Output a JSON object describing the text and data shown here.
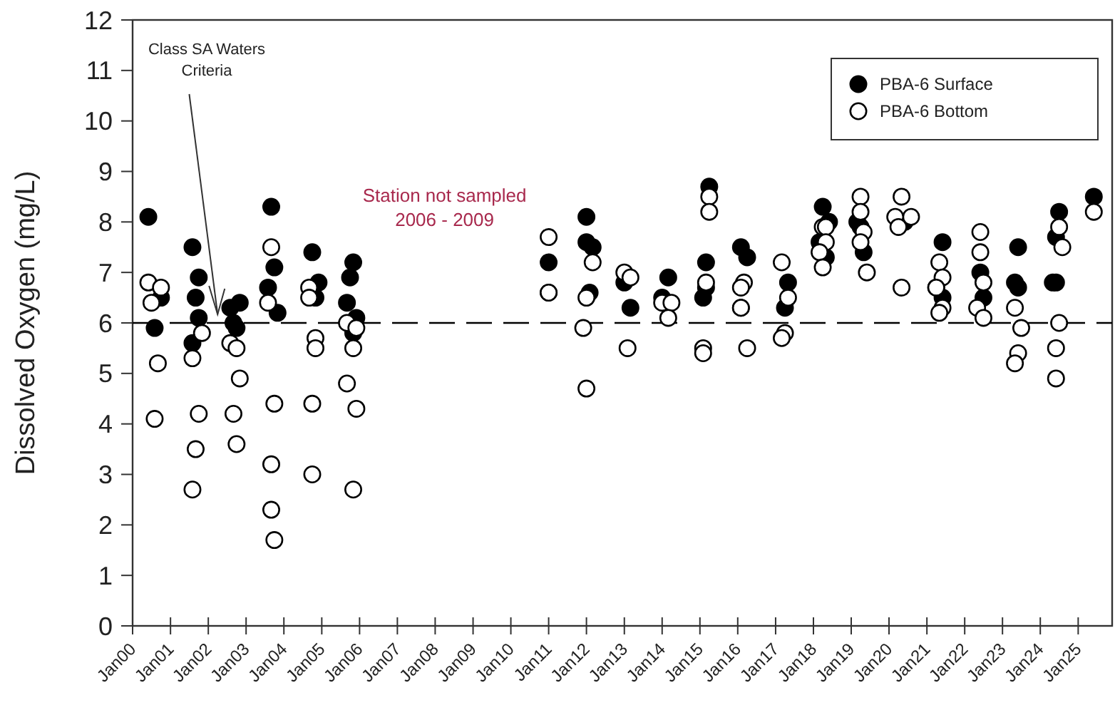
{
  "chart_data": {
    "type": "scatter",
    "ylabel": "Dissolved Oxygen (mg/L)",
    "xlim": [
      "2000-01-01",
      "2025-11-25"
    ],
    "ylim": [
      0,
      12
    ],
    "xticks": [
      {
        "value": "2000-01",
        "label": "Jan00"
      },
      {
        "value": "2001-01",
        "label": "Jan01"
      },
      {
        "value": "2002-01",
        "label": "Jan02"
      },
      {
        "value": "2003-01",
        "label": "Jan03"
      },
      {
        "value": "2004-01",
        "label": "Jan04"
      },
      {
        "value": "2005-01",
        "label": "Jan05"
      },
      {
        "value": "2006-01",
        "label": "Jan06"
      },
      {
        "value": "2007-01",
        "label": "Jan07"
      },
      {
        "value": "2008-01",
        "label": "Jan08"
      },
      {
        "value": "2009-01",
        "label": "Jan09"
      },
      {
        "value": "2010-01",
        "label": "Jan10"
      },
      {
        "value": "2011-01",
        "label": "Jan11"
      },
      {
        "value": "2012-01",
        "label": "Jan12"
      },
      {
        "value": "2013-01",
        "label": "Jan13"
      },
      {
        "value": "2014-01",
        "label": "Jan14"
      },
      {
        "value": "2015-01",
        "label": "Jan15"
      },
      {
        "value": "2016-01",
        "label": "Jan16"
      },
      {
        "value": "2017-01",
        "label": "Jan17"
      },
      {
        "value": "2018-01",
        "label": "Jan18"
      },
      {
        "value": "2019-01",
        "label": "Jan19"
      },
      {
        "value": "2020-01",
        "label": "Jan20"
      },
      {
        "value": "2021-01",
        "label": "Jan21"
      },
      {
        "value": "2022-01",
        "label": "Jan22"
      },
      {
        "value": "2023-01",
        "label": "Jan23"
      },
      {
        "value": "2024-01",
        "label": "Jan24"
      },
      {
        "value": "2025-01",
        "label": "Jan25"
      }
    ],
    "yticks": [
      0,
      1,
      2,
      3,
      4,
      5,
      6,
      7,
      8,
      9,
      10,
      11,
      12
    ],
    "grid": false,
    "legend": "top right",
    "marker": "circle",
    "ref_lines": [
      {
        "axis": "y",
        "value": 6,
        "label": "Class SA Waters Criteria",
        "line_style": "dashed",
        "color": "#000000"
      }
    ],
    "annotations": [
      "Station not sampled\n2006 - 2009"
    ],
    "series": [
      {
        "name": "PBA-6 Surface",
        "color": "#000000",
        "x": [
          "2000-06",
          "2000-08",
          "2000-10",
          "2001-08",
          "2001-10",
          "2001-09",
          "2001-10",
          "2001-08",
          "2002-08",
          "2002-11",
          "2002-09",
          "2002-10",
          "2003-09",
          "2003-10",
          "2003-08",
          "2003-11",
          "2004-10",
          "2004-12",
          "2004-11",
          "2005-11",
          "2005-10",
          "2005-09",
          "2005-12",
          "2005-11",
          "2011-01",
          "2011-01",
          "2012-01",
          "2012-01",
          "2012-03",
          "2012-02",
          "2013-01",
          "2013-03",
          "2014-03",
          "2014-01",
          "2015-04",
          "2015-03",
          "2015-03",
          "2015-02",
          "2016-02",
          "2016-04",
          "2016-02",
          "2017-05",
          "2017-04",
          "2018-04",
          "2018-06",
          "2018-03",
          "2018-05",
          "2019-03",
          "2019-04",
          "2019-05",
          "2020-06",
          "2021-06",
          "2021-04",
          "2021-06",
          "2022-06",
          "2022-07",
          "2023-06",
          "2023-05",
          "2023-06",
          "2024-07",
          "2024-06",
          "2024-06",
          "2024-05",
          "2025-06"
        ],
        "values": [
          8.1,
          5.9,
          6.5,
          7.5,
          6.9,
          6.5,
          6.1,
          5.6,
          6.3,
          6.4,
          6.0,
          5.9,
          8.3,
          7.1,
          6.7,
          6.2,
          7.4,
          6.8,
          6.5,
          7.2,
          6.9,
          6.4,
          6.1,
          5.8,
          7.2,
          6.6,
          8.1,
          7.6,
          7.5,
          6.6,
          6.8,
          6.3,
          6.9,
          6.5,
          8.7,
          7.2,
          6.7,
          6.5,
          7.5,
          7.3,
          6.3,
          6.8,
          6.3,
          8.3,
          8.0,
          7.6,
          7.3,
          8.0,
          7.9,
          7.4,
          8.0,
          7.6,
          6.7,
          6.5,
          7.0,
          6.5,
          7.5,
          6.8,
          6.7,
          8.2,
          7.7,
          6.8,
          6.8,
          8.5
        ]
      },
      {
        "name": "PBA-6 Bottom",
        "color": "#ffffff",
        "x": [
          "2000-06",
          "2000-07",
          "2000-10",
          "2000-09",
          "2000-08",
          "2001-08",
          "2001-11",
          "2001-10",
          "2001-09",
          "2001-08",
          "2002-08",
          "2002-10",
          "2002-11",
          "2002-09",
          "2002-10",
          "2003-09",
          "2003-08",
          "2003-10",
          "2003-09",
          "2003-09",
          "2003-10",
          "2004-09",
          "2004-09",
          "2004-11",
          "2004-11",
          "2004-10",
          "2004-10",
          "2005-09",
          "2005-12",
          "2005-11",
          "2005-09",
          "2005-12",
          "2005-11",
          "2011-01",
          "2011-01",
          "2012-03",
          "2012-01",
          "2011-12",
          "2012-01",
          "2013-01",
          "2013-03",
          "2013-02",
          "2014-01",
          "2014-04",
          "2014-03",
          "2015-04",
          "2015-04",
          "2015-03",
          "2015-02",
          "2015-02",
          "2016-03",
          "2016-02",
          "2016-02",
          "2016-04",
          "2017-03",
          "2017-05",
          "2017-04",
          "2017-03",
          "2018-04",
          "2018-05",
          "2018-05",
          "2018-03",
          "2018-04",
          "2019-04",
          "2019-04",
          "2019-05",
          "2019-04",
          "2019-06",
          "2020-05",
          "2020-08",
          "2020-03",
          "2020-04",
          "2020-05",
          "2021-05",
          "2021-06",
          "2021-04",
          "2021-06",
          "2021-05",
          "2022-06",
          "2022-06",
          "2022-07",
          "2022-05",
          "2022-07",
          "2023-05",
          "2023-07",
          "2023-06",
          "2023-05",
          "2024-07",
          "2024-08",
          "2024-07",
          "2024-06",
          "2024-06",
          "2025-06"
        ],
        "values": [
          6.8,
          6.4,
          6.7,
          5.2,
          4.1,
          5.3,
          5.8,
          4.2,
          3.5,
          2.7,
          5.6,
          5.5,
          4.9,
          4.2,
          3.6,
          7.5,
          6.4,
          4.4,
          3.2,
          2.3,
          1.7,
          6.7,
          6.5,
          5.7,
          5.5,
          4.4,
          3.0,
          6.0,
          5.9,
          5.5,
          4.8,
          4.3,
          2.7,
          7.7,
          6.6,
          7.2,
          6.5,
          5.9,
          4.7,
          7.0,
          6.9,
          5.5,
          6.4,
          6.4,
          6.1,
          8.5,
          8.2,
          6.8,
          5.5,
          5.4,
          6.8,
          6.7,
          6.3,
          5.5,
          7.2,
          6.5,
          5.8,
          5.7,
          7.9,
          7.9,
          7.6,
          7.4,
          7.1,
          8.5,
          8.2,
          7.8,
          7.6,
          7.0,
          8.5,
          8.1,
          8.1,
          7.9,
          6.7,
          7.2,
          6.9,
          6.7,
          6.3,
          6.2,
          7.8,
          7.4,
          6.8,
          6.3,
          6.1,
          6.3,
          5.9,
          5.4,
          5.2,
          7.9,
          7.5,
          6.0,
          5.5,
          4.9,
          8.2
        ]
      }
    ]
  }
}
